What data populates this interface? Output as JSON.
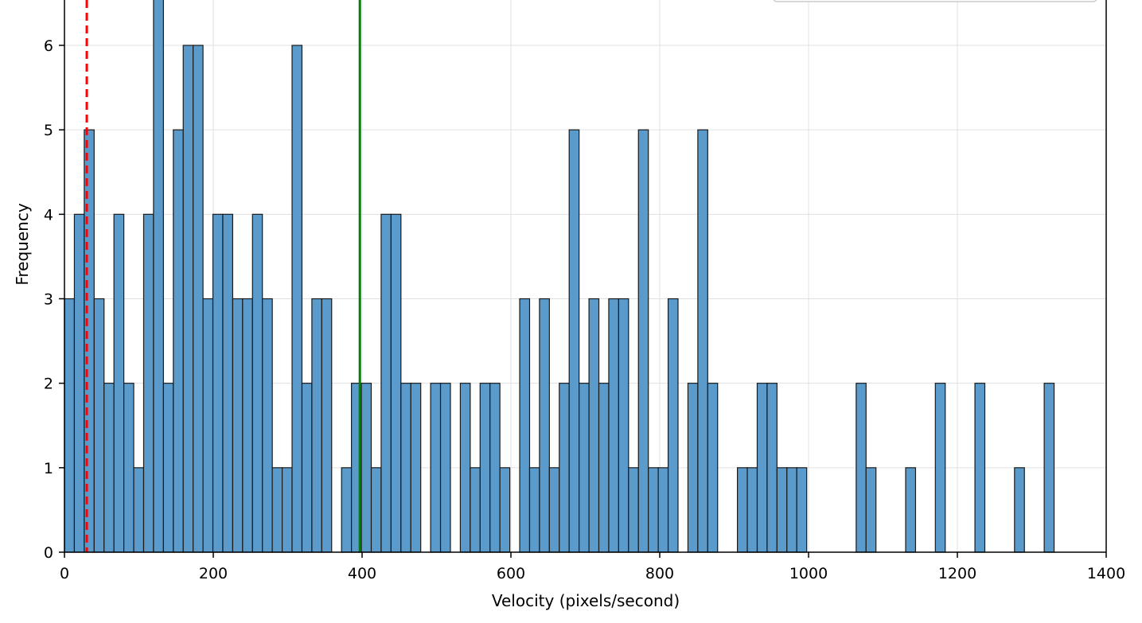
{
  "chart_data": {
    "type": "bar",
    "title": "",
    "xlabel": "Velocity (pixels/second)",
    "ylabel": "Frequency",
    "xlim": [
      0,
      1400
    ],
    "ylim": [
      0,
      6.5
    ],
    "xticks": [
      "0",
      "200",
      "400",
      "600",
      "800",
      "1000",
      "1200",
      "1400"
    ],
    "yticks": [
      "0",
      "1",
      "2",
      "3",
      "4",
      "5",
      "6"
    ],
    "grid": true,
    "legend": "top-right",
    "bin_width": 13.3,
    "bins": [
      {
        "x": 0.0,
        "count": 3
      },
      {
        "x": 13.3,
        "count": 4
      },
      {
        "x": 26.6,
        "count": 5
      },
      {
        "x": 39.9,
        "count": 3
      },
      {
        "x": 53.2,
        "count": 2
      },
      {
        "x": 66.5,
        "count": 4
      },
      {
        "x": 79.8,
        "count": 2
      },
      {
        "x": 93.1,
        "count": 1
      },
      {
        "x": 106.4,
        "count": 4
      },
      {
        "x": 119.7,
        "count": 7
      },
      {
        "x": 133.0,
        "count": 2
      },
      {
        "x": 146.3,
        "count": 5
      },
      {
        "x": 159.6,
        "count": 6
      },
      {
        "x": 172.9,
        "count": 6
      },
      {
        "x": 186.2,
        "count": 3
      },
      {
        "x": 199.5,
        "count": 4
      },
      {
        "x": 212.8,
        "count": 4
      },
      {
        "x": 226.1,
        "count": 3
      },
      {
        "x": 239.4,
        "count": 3
      },
      {
        "x": 252.7,
        "count": 4
      },
      {
        "x": 266.0,
        "count": 3
      },
      {
        "x": 279.3,
        "count": 1
      },
      {
        "x": 292.6,
        "count": 1
      },
      {
        "x": 305.9,
        "count": 6
      },
      {
        "x": 319.2,
        "count": 2
      },
      {
        "x": 332.5,
        "count": 3
      },
      {
        "x": 345.8,
        "count": 3
      },
      {
        "x": 372.4,
        "count": 1
      },
      {
        "x": 385.7,
        "count": 2
      },
      {
        "x": 399.0,
        "count": 2
      },
      {
        "x": 412.3,
        "count": 1
      },
      {
        "x": 425.6,
        "count": 4
      },
      {
        "x": 438.9,
        "count": 4
      },
      {
        "x": 452.2,
        "count": 2
      },
      {
        "x": 465.5,
        "count": 2
      },
      {
        "x": 492.1,
        "count": 2
      },
      {
        "x": 505.4,
        "count": 2
      },
      {
        "x": 532.0,
        "count": 2
      },
      {
        "x": 545.3,
        "count": 1
      },
      {
        "x": 558.6,
        "count": 2
      },
      {
        "x": 571.9,
        "count": 2
      },
      {
        "x": 585.2,
        "count": 1
      },
      {
        "x": 611.8,
        "count": 3
      },
      {
        "x": 625.1,
        "count": 1
      },
      {
        "x": 638.4,
        "count": 3
      },
      {
        "x": 651.7,
        "count": 1
      },
      {
        "x": 665.0,
        "count": 2
      },
      {
        "x": 678.3,
        "count": 5
      },
      {
        "x": 691.6,
        "count": 2
      },
      {
        "x": 704.9,
        "count": 3
      },
      {
        "x": 718.2,
        "count": 2
      },
      {
        "x": 731.5,
        "count": 3
      },
      {
        "x": 744.8,
        "count": 3
      },
      {
        "x": 758.1,
        "count": 1
      },
      {
        "x": 771.4,
        "count": 5
      },
      {
        "x": 784.7,
        "count": 1
      },
      {
        "x": 798.0,
        "count": 1
      },
      {
        "x": 811.3,
        "count": 3
      },
      {
        "x": 837.9,
        "count": 2
      },
      {
        "x": 851.2,
        "count": 5
      },
      {
        "x": 864.5,
        "count": 2
      },
      {
        "x": 904.4,
        "count": 1
      },
      {
        "x": 917.7,
        "count": 1
      },
      {
        "x": 931.0,
        "count": 2
      },
      {
        "x": 944.3,
        "count": 2
      },
      {
        "x": 957.6,
        "count": 1
      },
      {
        "x": 970.9,
        "count": 1
      },
      {
        "x": 984.2,
        "count": 1
      },
      {
        "x": 1064.0,
        "count": 2
      },
      {
        "x": 1077.3,
        "count": 1
      },
      {
        "x": 1130.5,
        "count": 1
      },
      {
        "x": 1170.4,
        "count": 2
      },
      {
        "x": 1223.6,
        "count": 2
      },
      {
        "x": 1276.8,
        "count": 1
      },
      {
        "x": 1316.7,
        "count": 2
      }
    ],
    "reference_lines": [
      {
        "x": 30,
        "color": "#ff0000",
        "style": "dashed"
      },
      {
        "x": 397,
        "color": "#008000",
        "style": "solid"
      }
    ],
    "colors": {
      "bar_fill": "#5b9bcb",
      "bar_edge": "#1a1a1a",
      "grid": "#e0e0e0"
    }
  }
}
